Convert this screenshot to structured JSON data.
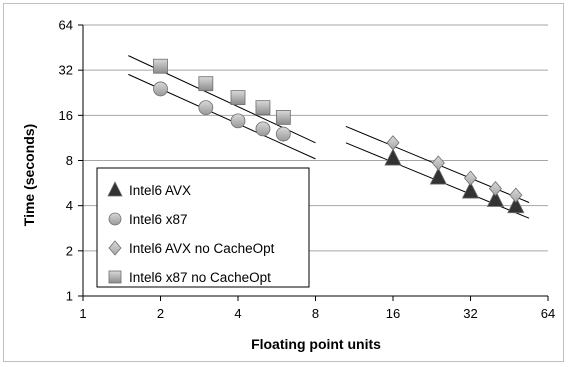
{
  "chart_data": {
    "type": "scatter",
    "xlabel": "Floating point units",
    "ylabel": "Time (seconds)",
    "x_scale": "log2",
    "y_scale": "log2",
    "xlim": [
      1,
      64
    ],
    "ylim": [
      1,
      64
    ],
    "x_ticks": [
      "1",
      "2",
      "4",
      "8",
      "16",
      "32",
      "64"
    ],
    "y_ticks": [
      "1",
      "2",
      "4",
      "8",
      "16",
      "32",
      "64"
    ],
    "grid": "horizontal",
    "legend_position": "lower-left",
    "series": [
      {
        "name": "Intel6 AVX",
        "marker": "triangle",
        "color": "#333333",
        "x": [
          16,
          24,
          32,
          40,
          48
        ],
        "y": [
          8.3,
          6.2,
          5.0,
          4.4,
          4.0
        ]
      },
      {
        "name": "Intel6 x87",
        "marker": "circle",
        "color": "#999999",
        "x": [
          2,
          3,
          4,
          5,
          6
        ],
        "y": [
          24,
          18,
          14.7,
          13,
          12
        ]
      },
      {
        "name": "Intel6 AVX no CacheOpt",
        "marker": "diamond",
        "color": "#a6a6a6",
        "x": [
          16,
          24,
          32,
          40,
          48
        ],
        "y": [
          10.5,
          7.7,
          6.1,
          5.2,
          4.7
        ]
      },
      {
        "name": "Intel6 x87 no CacheOpt",
        "marker": "square",
        "color": "#8c8c8c",
        "x": [
          2,
          3,
          4,
          5,
          6
        ],
        "y": [
          34,
          26,
          21,
          18,
          15.5
        ]
      }
    ],
    "trendlines": [
      {
        "x": [
          1.5,
          8
        ],
        "y": [
          40,
          10.5
        ]
      },
      {
        "x": [
          1.5,
          8
        ],
        "y": [
          30,
          8.2
        ]
      },
      {
        "x": [
          10.5,
          54
        ],
        "y": [
          13.5,
          4.2
        ]
      },
      {
        "x": [
          10.5,
          54
        ],
        "y": [
          10.5,
          3.3
        ]
      }
    ]
  }
}
